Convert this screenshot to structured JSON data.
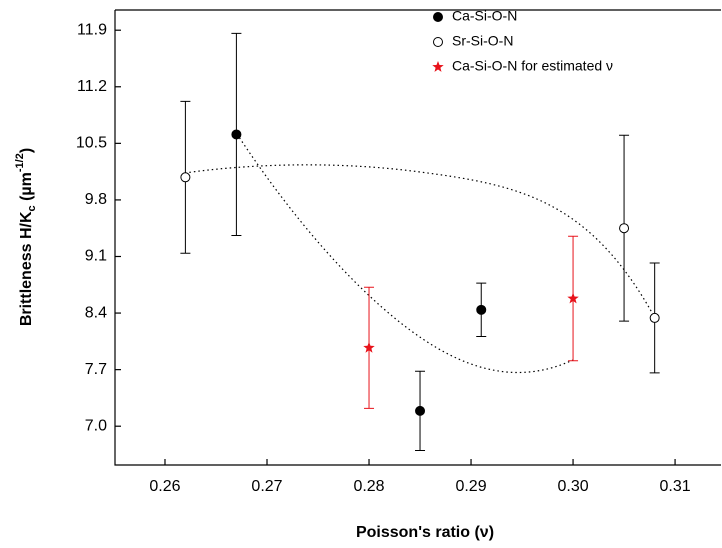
{
  "chart_data": {
    "type": "scatter",
    "xlabel": "Poisson's ratio (ν)",
    "ylabel_parts": [
      "Brittleness H/K",
      "c",
      " (µm",
      "-1/2",
      ")"
    ],
    "xlim": [
      0.2551,
      0.3146
    ],
    "ylim": [
      6.52,
      12.15
    ],
    "xticks": [
      0.26,
      0.27,
      0.28,
      0.29,
      {
        "value": 0.3,
        "label": "0.30"
      },
      0.31
    ],
    "yticks": [
      {
        "value": 7,
        "label": "7.0"
      },
      7.7,
      8.4,
      9.1,
      9.8,
      10.5,
      11.2,
      11.9
    ],
    "legend": "top-right",
    "series": [
      {
        "name": "Ca-Si-O-N",
        "color": "#000000",
        "marker": "filled-circle",
        "x": [
          0.267,
          0.285,
          0.291
        ],
        "values": [
          10.61,
          7.19,
          8.44
        ],
        "errors": [
          1.25,
          0.49,
          0.33
        ]
      },
      {
        "name": "Sr-Si-O-N",
        "color": "#000000",
        "marker": "open-circle",
        "x": [
          0.262,
          0.305,
          0.308
        ],
        "values": [
          10.08,
          9.45,
          8.34
        ],
        "errors": [
          0.94,
          1.15,
          0.68
        ]
      },
      {
        "name": "Ca-Si-O-N for estimated ν",
        "color": "#e8131b",
        "marker": "star",
        "x": [
          0.28,
          0.3
        ],
        "values": [
          7.97,
          8.58
        ],
        "errors": [
          0.75,
          0.77
        ]
      }
    ]
  }
}
